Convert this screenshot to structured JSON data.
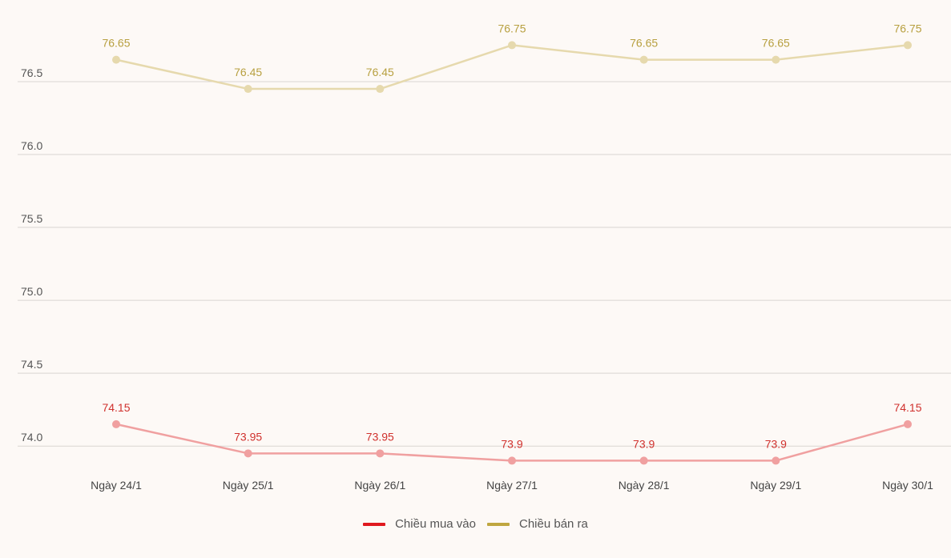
{
  "chart_data": {
    "type": "line",
    "categories": [
      "Ngày 24/1",
      "Ngày 25/1",
      "Ngày 26/1",
      "Ngày 27/1",
      "Ngày 28/1",
      "Ngày 29/1",
      "Ngày 30/1"
    ],
    "series": [
      {
        "name": "Chiều mua vào",
        "values": [
          74.15,
          73.95,
          73.95,
          73.9,
          73.9,
          73.9,
          74.15
        ],
        "labels": [
          "74.15",
          "73.95",
          "73.95",
          "73.9",
          "73.9",
          "73.9",
          "74.15"
        ],
        "color": "#f0a0a0",
        "label_color": "#d0312d",
        "legend_color": "#e0191f"
      },
      {
        "name": "Chiều bán ra",
        "values": [
          76.65,
          76.45,
          76.45,
          76.75,
          76.65,
          76.65,
          76.75
        ],
        "labels": [
          "76.65",
          "76.45",
          "76.45",
          "76.75",
          "76.65",
          "76.65",
          "76.75"
        ],
        "color": "#e6d9ad",
        "label_color": "#b8a040",
        "legend_color": "#bfa640"
      }
    ],
    "yticks": [
      "74.0",
      "74.5",
      "75.0",
      "75.5",
      "76.0",
      "76.5"
    ],
    "ytick_values": [
      74.0,
      74.5,
      75.0,
      75.5,
      76.0,
      76.5
    ],
    "ylim": [
      73.82,
      76.95
    ],
    "grid": true,
    "legend_position": "bottom-center"
  }
}
